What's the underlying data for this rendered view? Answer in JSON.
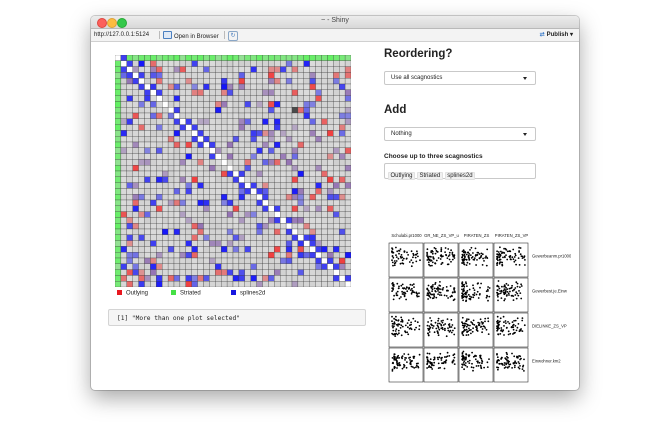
{
  "window": {
    "title": "~ - Shiny"
  },
  "toolbar": {
    "url": "http://127.0.0.1:5124",
    "open_in_browser": "Open in Browser",
    "publish": "Publish"
  },
  "heatmap": {
    "size": 40,
    "colors": {
      "outlying": "#ff0000",
      "striated": "#33ff33",
      "splines2d": "#0000ff",
      "diagonal": "#ffffff",
      "base": "#cfcfcf",
      "border": "#3a3a3a",
      "highlight": "#4a4a4a"
    },
    "legend": [
      {
        "label": "Outlying",
        "color": "#e8171f"
      },
      {
        "label": "Striated",
        "color": "#45e045"
      },
      {
        "label": "splines2d",
        "color": "#1616e0"
      }
    ]
  },
  "console_output": "[1] \"More than one plot selected\"",
  "reordering": {
    "heading": "Reordering?",
    "selected": "Use all scagnostics"
  },
  "add": {
    "heading": "Add",
    "selected": "Nothing"
  },
  "scagnostics": {
    "label": "Choose up to three scagnostics",
    "tags": [
      "Outlying",
      "Striated",
      "splines2d"
    ]
  },
  "splom": {
    "col_labels": [
      "Schulabi.pr1000",
      "GR_NE_ZS_VP_u",
      "PIRATEN_ZS",
      "PIRATEN_ZS_VP"
    ],
    "row_labels": [
      "Gewerbeanm.pr1000",
      "Gewerbest.je.Einw",
      "DIELINKE_ZS_VP",
      "Einwohner.km2"
    ]
  }
}
